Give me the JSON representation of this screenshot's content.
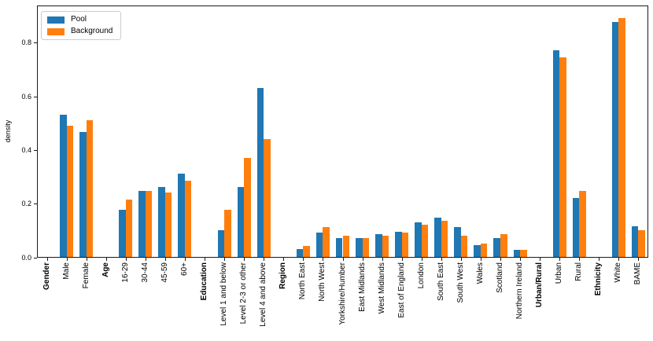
{
  "chart_data": {
    "type": "bar",
    "title": "",
    "xlabel": "",
    "ylabel": "density",
    "ylim": [
      0,
      0.94
    ],
    "yticks": [
      "0.0",
      "0.2",
      "0.4",
      "0.6",
      "0.8"
    ],
    "grid": false,
    "legend_position": "upper left",
    "categories": [
      "Gender",
      "Male",
      "Female",
      "Age",
      "16-29",
      "30-44",
      "45-59",
      "60+",
      "Education",
      "Level 1 and below",
      "Level 2-3 or other",
      "Level 4 and above",
      "Region",
      "North East",
      "North West",
      "Yorkshire/Humber",
      "East Midlands",
      "West Midlands",
      "East of England",
      "London",
      "South East",
      "South West",
      "Wales",
      "Scotland",
      "Northern Ireland",
      "Urban/Rural",
      "Urban",
      "Rural",
      "Ethnicity",
      "White",
      "BAME"
    ],
    "group_header_indices": [
      0,
      3,
      8,
      12,
      25,
      28
    ],
    "series": [
      {
        "name": "Pool",
        "color": "#1f77b4",
        "values": [
          null,
          0.53,
          0.465,
          null,
          0.175,
          0.245,
          0.26,
          0.31,
          null,
          0.1,
          0.26,
          0.63,
          null,
          0.03,
          0.09,
          0.07,
          0.07,
          0.085,
          0.095,
          0.13,
          0.145,
          0.11,
          0.045,
          0.07,
          0.025,
          null,
          0.77,
          0.22,
          null,
          0.875,
          0.115
        ]
      },
      {
        "name": "Background",
        "color": "#ff7f0e",
        "values": [
          null,
          0.49,
          0.51,
          null,
          0.215,
          0.245,
          0.24,
          0.285,
          null,
          0.175,
          0.37,
          0.44,
          null,
          0.04,
          0.11,
          0.08,
          0.07,
          0.08,
          0.09,
          0.12,
          0.135,
          0.08,
          0.05,
          0.085,
          0.025,
          null,
          0.745,
          0.245,
          null,
          0.89,
          0.1
        ]
      }
    ]
  }
}
